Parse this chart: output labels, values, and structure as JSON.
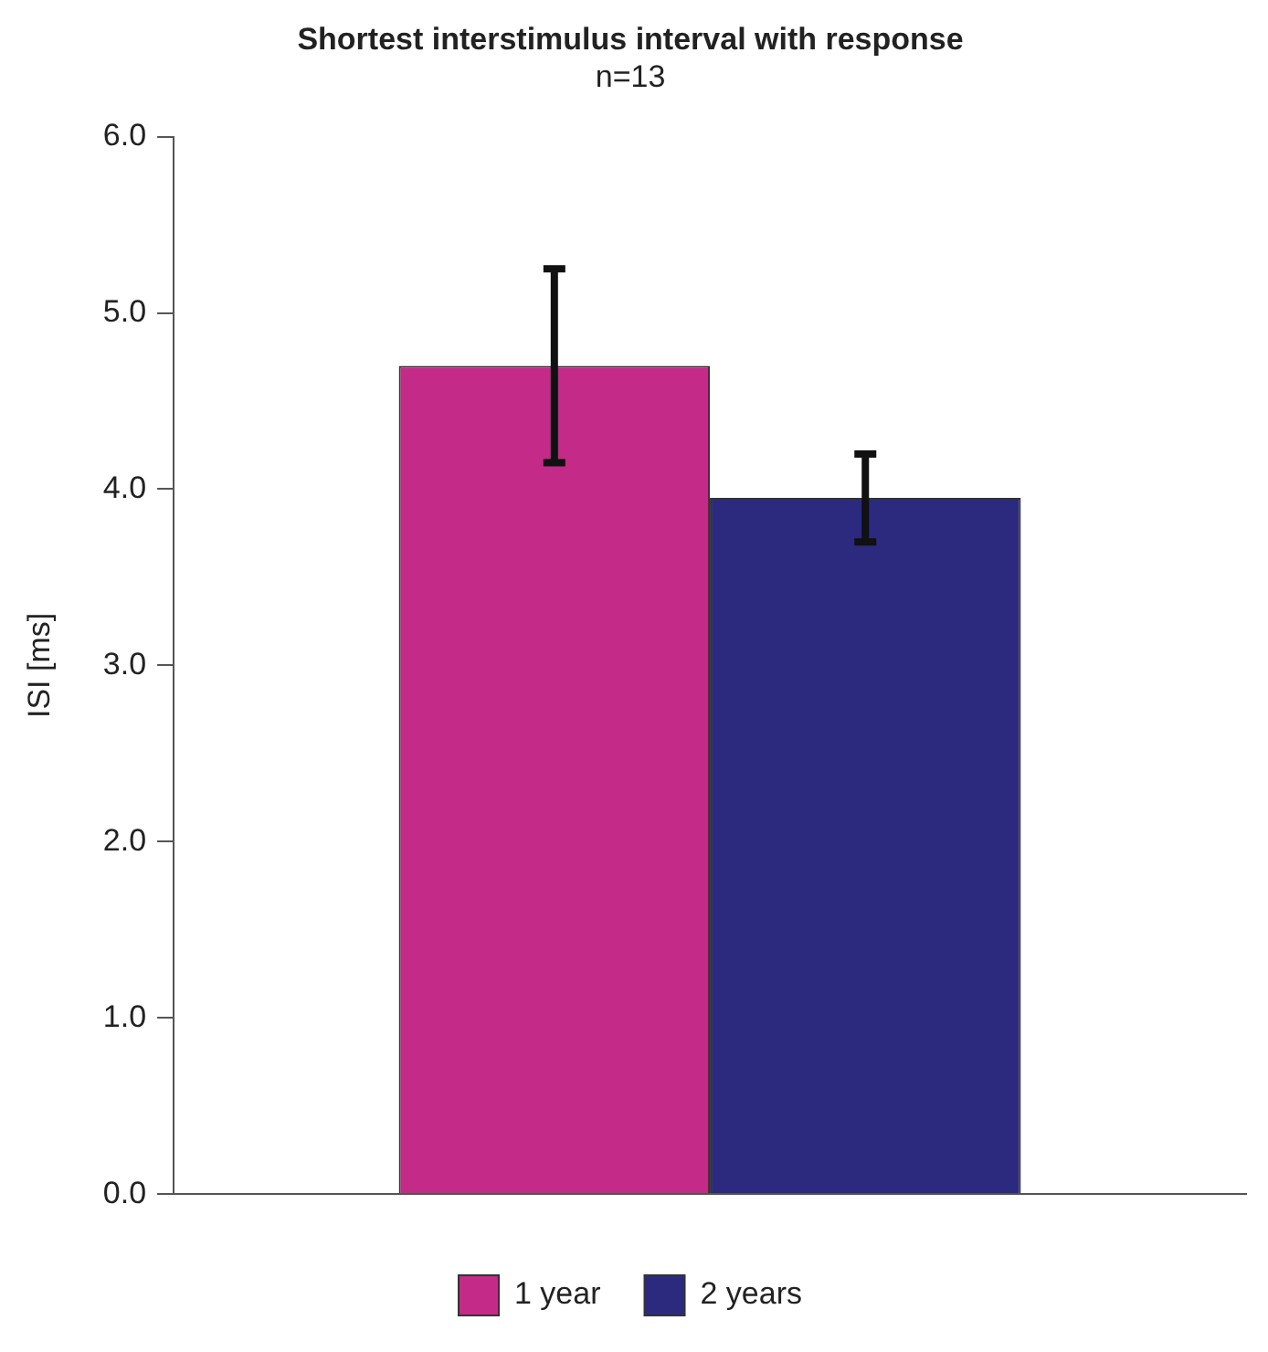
{
  "chart_data": {
    "type": "bar",
    "title": "Shortest interstimulus interval with response",
    "subtitle": "n=13",
    "ylabel": "ISI [ms]",
    "categories": [
      null
    ],
    "series": [
      {
        "name": "1 year",
        "color": "#c42a87",
        "values": [
          4.7
        ],
        "errors": [
          0.55
        ]
      },
      {
        "name": "2 years",
        "color": "#2b2a7f",
        "values": [
          3.95
        ],
        "errors": [
          0.25
        ]
      }
    ],
    "ylim": [
      0,
      6
    ],
    "yticks": [
      {
        "value": 0,
        "label": "0.0"
      },
      {
        "value": 1,
        "label": "1.0"
      },
      {
        "value": 2,
        "label": "2.0"
      },
      {
        "value": 3,
        "label": "3.0"
      },
      {
        "value": 4,
        "label": "4.0"
      },
      {
        "value": 5,
        "label": "5.0"
      },
      {
        "value": 6,
        "label": "6.0"
      }
    ],
    "grid": false,
    "legend": "bottom"
  }
}
